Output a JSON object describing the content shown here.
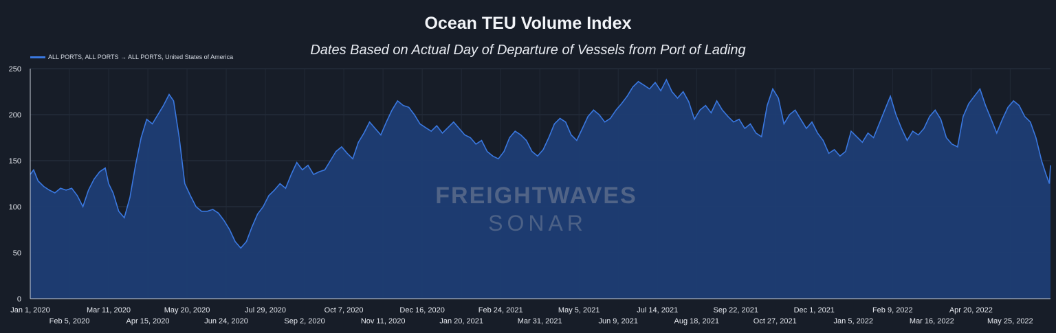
{
  "chart_data": {
    "type": "area",
    "title": "Ocean TEU Volume Index",
    "subtitle": "Dates Based on Actual Day of Departure of Vessels from Port of Lading",
    "legend": {
      "position": "top-left",
      "entries": [
        "ALL PORTS, ALL PORTS → ALL PORTS, United States of America"
      ]
    },
    "ylim": [
      0,
      250
    ],
    "yticks": [
      0,
      50,
      100,
      150,
      200,
      250
    ],
    "xlim": [
      "2020-01-01",
      "2022-06-30"
    ],
    "grid": true,
    "xticks_row1": [
      "Jan 1, 2020",
      "Mar 11, 2020",
      "May 20, 2020",
      "Jul 29, 2020",
      "Oct 7, 2020",
      "Dec 16, 2020",
      "Feb 24, 2021",
      "May 5, 2021",
      "Jul 14, 2021",
      "Sep 22, 2021",
      "Dec 1, 2021",
      "Feb 9, 2022",
      "Apr 20, 2022"
    ],
    "xticks_row2": [
      "Feb 5, 2020",
      "Apr 15, 2020",
      "Jun 24, 2020",
      "Sep 2, 2020",
      "Nov 11, 2020",
      "Jan 20, 2021",
      "Mar 31, 2021",
      "Jun 9, 2021",
      "Aug 18, 2021",
      "Oct 27, 2021",
      "Jan 5, 2022",
      "Mar 16, 2022",
      "May 25, 2022"
    ],
    "series": [
      {
        "name": "ALL PORTS, ALL PORTS → ALL PORTS, United States of America",
        "color": "#3a78e0",
        "points": [
          [
            "2020-01-01",
            135
          ],
          [
            "2020-01-04",
            140
          ],
          [
            "2020-01-08",
            128
          ],
          [
            "2020-01-13",
            122
          ],
          [
            "2020-01-18",
            118
          ],
          [
            "2020-01-23",
            115
          ],
          [
            "2020-01-28",
            120
          ],
          [
            "2020-02-02",
            118
          ],
          [
            "2020-02-07",
            120
          ],
          [
            "2020-02-12",
            112
          ],
          [
            "2020-02-17",
            100
          ],
          [
            "2020-02-22",
            118
          ],
          [
            "2020-02-27",
            130
          ],
          [
            "2020-03-03",
            138
          ],
          [
            "2020-03-08",
            142
          ],
          [
            "2020-03-11",
            125
          ],
          [
            "2020-03-15",
            115
          ],
          [
            "2020-03-20",
            95
          ],
          [
            "2020-03-25",
            88
          ],
          [
            "2020-03-30",
            110
          ],
          [
            "2020-04-04",
            145
          ],
          [
            "2020-04-09",
            175
          ],
          [
            "2020-04-14",
            195
          ],
          [
            "2020-04-19",
            190
          ],
          [
            "2020-04-24",
            200
          ],
          [
            "2020-04-29",
            210
          ],
          [
            "2020-05-04",
            222
          ],
          [
            "2020-05-08",
            215
          ],
          [
            "2020-05-13",
            175
          ],
          [
            "2020-05-18",
            125
          ],
          [
            "2020-05-23",
            112
          ],
          [
            "2020-05-28",
            100
          ],
          [
            "2020-06-02",
            95
          ],
          [
            "2020-06-07",
            95
          ],
          [
            "2020-06-12",
            97
          ],
          [
            "2020-06-17",
            93
          ],
          [
            "2020-06-22",
            85
          ],
          [
            "2020-06-27",
            75
          ],
          [
            "2020-07-02",
            62
          ],
          [
            "2020-07-07",
            55
          ],
          [
            "2020-07-12",
            62
          ],
          [
            "2020-07-17",
            78
          ],
          [
            "2020-07-22",
            92
          ],
          [
            "2020-07-27",
            100
          ],
          [
            "2020-08-01",
            112
          ],
          [
            "2020-08-06",
            118
          ],
          [
            "2020-08-11",
            125
          ],
          [
            "2020-08-16",
            120
          ],
          [
            "2020-08-21",
            135
          ],
          [
            "2020-08-26",
            148
          ],
          [
            "2020-08-31",
            140
          ],
          [
            "2020-09-05",
            145
          ],
          [
            "2020-09-10",
            135
          ],
          [
            "2020-09-15",
            138
          ],
          [
            "2020-09-20",
            140
          ],
          [
            "2020-09-25",
            150
          ],
          [
            "2020-09-30",
            160
          ],
          [
            "2020-10-05",
            165
          ],
          [
            "2020-10-10",
            158
          ],
          [
            "2020-10-15",
            152
          ],
          [
            "2020-10-20",
            170
          ],
          [
            "2020-10-25",
            180
          ],
          [
            "2020-10-30",
            192
          ],
          [
            "2020-11-04",
            185
          ],
          [
            "2020-11-09",
            178
          ],
          [
            "2020-11-14",
            192
          ],
          [
            "2020-11-19",
            205
          ],
          [
            "2020-11-24",
            215
          ],
          [
            "2020-11-29",
            210
          ],
          [
            "2020-12-04",
            208
          ],
          [
            "2020-12-09",
            200
          ],
          [
            "2020-12-14",
            190
          ],
          [
            "2020-12-19",
            186
          ],
          [
            "2020-12-24",
            182
          ],
          [
            "2020-12-29",
            188
          ],
          [
            "2021-01-03",
            180
          ],
          [
            "2021-01-08",
            186
          ],
          [
            "2021-01-13",
            192
          ],
          [
            "2021-01-18",
            185
          ],
          [
            "2021-01-23",
            178
          ],
          [
            "2021-01-28",
            175
          ],
          [
            "2021-02-02",
            168
          ],
          [
            "2021-02-07",
            172
          ],
          [
            "2021-02-12",
            160
          ],
          [
            "2021-02-17",
            155
          ],
          [
            "2021-02-22",
            152
          ],
          [
            "2021-02-27",
            160
          ],
          [
            "2021-03-04",
            175
          ],
          [
            "2021-03-09",
            182
          ],
          [
            "2021-03-14",
            178
          ],
          [
            "2021-03-19",
            172
          ],
          [
            "2021-03-24",
            160
          ],
          [
            "2021-03-29",
            155
          ],
          [
            "2021-04-03",
            162
          ],
          [
            "2021-04-08",
            175
          ],
          [
            "2021-04-13",
            190
          ],
          [
            "2021-04-18",
            196
          ],
          [
            "2021-04-23",
            192
          ],
          [
            "2021-04-28",
            178
          ],
          [
            "2021-05-03",
            172
          ],
          [
            "2021-05-08",
            185
          ],
          [
            "2021-05-13",
            198
          ],
          [
            "2021-05-18",
            205
          ],
          [
            "2021-05-23",
            200
          ],
          [
            "2021-05-28",
            192
          ],
          [
            "2021-06-02",
            196
          ],
          [
            "2021-06-07",
            205
          ],
          [
            "2021-06-12",
            212
          ],
          [
            "2021-06-17",
            220
          ],
          [
            "2021-06-22",
            230
          ],
          [
            "2021-06-27",
            236
          ],
          [
            "2021-07-02",
            232
          ],
          [
            "2021-07-07",
            228
          ],
          [
            "2021-07-12",
            235
          ],
          [
            "2021-07-17",
            226
          ],
          [
            "2021-07-22",
            238
          ],
          [
            "2021-07-27",
            225
          ],
          [
            "2021-08-01",
            218
          ],
          [
            "2021-08-06",
            225
          ],
          [
            "2021-08-11",
            214
          ],
          [
            "2021-08-16",
            195
          ],
          [
            "2021-08-21",
            205
          ],
          [
            "2021-08-26",
            210
          ],
          [
            "2021-08-31",
            202
          ],
          [
            "2021-09-05",
            215
          ],
          [
            "2021-09-10",
            205
          ],
          [
            "2021-09-15",
            198
          ],
          [
            "2021-09-20",
            192
          ],
          [
            "2021-09-25",
            195
          ],
          [
            "2021-09-30",
            185
          ],
          [
            "2021-10-05",
            190
          ],
          [
            "2021-10-10",
            180
          ],
          [
            "2021-10-15",
            176
          ],
          [
            "2021-10-20",
            210
          ],
          [
            "2021-10-25",
            228
          ],
          [
            "2021-10-30",
            218
          ],
          [
            "2021-11-04",
            190
          ],
          [
            "2021-11-09",
            200
          ],
          [
            "2021-11-14",
            205
          ],
          [
            "2021-11-19",
            195
          ],
          [
            "2021-11-24",
            185
          ],
          [
            "2021-11-29",
            192
          ],
          [
            "2021-12-04",
            180
          ],
          [
            "2021-12-09",
            172
          ],
          [
            "2021-12-14",
            158
          ],
          [
            "2021-12-19",
            162
          ],
          [
            "2021-12-24",
            155
          ],
          [
            "2021-12-29",
            160
          ],
          [
            "2022-01-03",
            182
          ],
          [
            "2022-01-08",
            176
          ],
          [
            "2022-01-13",
            170
          ],
          [
            "2022-01-18",
            180
          ],
          [
            "2022-01-23",
            175
          ],
          [
            "2022-01-28",
            190
          ],
          [
            "2022-02-02",
            205
          ],
          [
            "2022-02-07",
            220
          ],
          [
            "2022-02-12",
            200
          ],
          [
            "2022-02-17",
            185
          ],
          [
            "2022-02-22",
            172
          ],
          [
            "2022-02-27",
            182
          ],
          [
            "2022-03-04",
            178
          ],
          [
            "2022-03-09",
            185
          ],
          [
            "2022-03-14",
            198
          ],
          [
            "2022-03-19",
            205
          ],
          [
            "2022-03-24",
            195
          ],
          [
            "2022-03-29",
            175
          ],
          [
            "2022-04-03",
            168
          ],
          [
            "2022-04-08",
            165
          ],
          [
            "2022-04-13",
            198
          ],
          [
            "2022-04-18",
            212
          ],
          [
            "2022-04-23",
            220
          ],
          [
            "2022-04-28",
            228
          ],
          [
            "2022-05-03",
            210
          ],
          [
            "2022-05-08",
            195
          ],
          [
            "2022-05-13",
            180
          ],
          [
            "2022-05-18",
            195
          ],
          [
            "2022-05-23",
            208
          ],
          [
            "2022-05-28",
            215
          ],
          [
            "2022-06-02",
            210
          ],
          [
            "2022-06-07",
            198
          ],
          [
            "2022-06-12",
            192
          ],
          [
            "2022-06-17",
            175
          ],
          [
            "2022-06-22",
            150
          ],
          [
            "2022-06-26",
            135
          ],
          [
            "2022-06-29",
            125
          ],
          [
            "2022-06-30",
            145
          ]
        ]
      }
    ],
    "watermark": [
      "FREIGHTWAVES",
      "SONAR"
    ]
  }
}
